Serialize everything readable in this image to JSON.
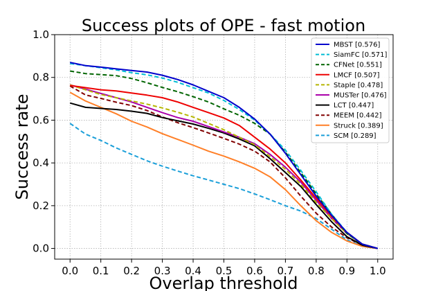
{
  "chart_data": {
    "type": "line",
    "title": "Success plots of OPE - fast motion",
    "xlabel": "Overlap threshold",
    "ylabel": "Success rate",
    "xlim": [
      -0.05,
      1.05
    ],
    "ylim": [
      -0.05,
      1.0
    ],
    "xticks": [
      0.0,
      0.1,
      0.2,
      0.3,
      0.4,
      0.5,
      0.6,
      0.7,
      0.8,
      0.9,
      1.0
    ],
    "yticks": [
      0.0,
      0.2,
      0.4,
      0.6,
      0.8,
      1.0
    ],
    "xtick_labels": [
      "0.0",
      "0.1",
      "0.2",
      "0.3",
      "0.4",
      "0.5",
      "0.6",
      "0.7",
      "0.8",
      "0.9",
      "1.0"
    ],
    "ytick_labels": [
      "0.0",
      "0.2",
      "0.4",
      "0.6",
      "0.8",
      "1.0"
    ],
    "grid": true,
    "legend_position": "top-right",
    "x": [
      0.0,
      0.05,
      0.1,
      0.15,
      0.2,
      0.25,
      0.3,
      0.35,
      0.4,
      0.45,
      0.5,
      0.55,
      0.6,
      0.65,
      0.7,
      0.75,
      0.8,
      0.85,
      0.9,
      0.95,
      1.0
    ],
    "series": [
      {
        "name": "MBST [0.576]",
        "color": "#0000cc",
        "dash": "solid",
        "values": [
          0.87,
          0.855,
          0.848,
          0.84,
          0.832,
          0.825,
          0.81,
          0.79,
          0.765,
          0.735,
          0.705,
          0.66,
          0.605,
          0.535,
          0.445,
          0.345,
          0.245,
          0.155,
          0.075,
          0.02,
          0.0
        ]
      },
      {
        "name": "SiamFC [0.571]",
        "color": "#00bcd4",
        "dash": "dash",
        "values": [
          0.865,
          0.855,
          0.845,
          0.835,
          0.822,
          0.812,
          0.797,
          0.777,
          0.752,
          0.727,
          0.692,
          0.65,
          0.6,
          0.535,
          0.46,
          0.365,
          0.265,
          0.16,
          0.075,
          0.02,
          0.0
        ]
      },
      {
        "name": "CFNet [0.551]",
        "color": "#006400",
        "dash": "dash",
        "values": [
          0.83,
          0.818,
          0.813,
          0.808,
          0.795,
          0.775,
          0.753,
          0.733,
          0.71,
          0.685,
          0.653,
          0.623,
          0.585,
          0.535,
          0.45,
          0.355,
          0.255,
          0.16,
          0.07,
          0.02,
          0.0
        ]
      },
      {
        "name": "LMCF [0.507]",
        "color": "#ee0000",
        "dash": "solid",
        "values": [
          0.762,
          0.752,
          0.742,
          0.737,
          0.727,
          0.717,
          0.705,
          0.685,
          0.66,
          0.635,
          0.61,
          0.575,
          0.52,
          0.465,
          0.4,
          0.32,
          0.235,
          0.15,
          0.075,
          0.02,
          0.0
        ]
      },
      {
        "name": "Staple [0.478]",
        "color": "#b5b500",
        "dash": "dash",
        "values": [
          0.765,
          0.742,
          0.72,
          0.705,
          0.69,
          0.675,
          0.657,
          0.637,
          0.615,
          0.585,
          0.555,
          0.52,
          0.485,
          0.43,
          0.37,
          0.3,
          0.215,
          0.14,
          0.07,
          0.02,
          0.0
        ]
      },
      {
        "name": "MUSTer [0.476]",
        "color": "#aa00aa",
        "dash": "solid",
        "values": [
          0.765,
          0.745,
          0.725,
          0.705,
          0.685,
          0.66,
          0.635,
          0.612,
          0.595,
          0.57,
          0.545,
          0.52,
          0.49,
          0.44,
          0.38,
          0.31,
          0.225,
          0.14,
          0.07,
          0.02,
          0.0
        ]
      },
      {
        "name": "LCT [0.447]",
        "color": "#000000",
        "dash": "solid",
        "values": [
          0.68,
          0.66,
          0.655,
          0.65,
          0.642,
          0.632,
          0.612,
          0.597,
          0.582,
          0.562,
          0.54,
          0.512,
          0.48,
          0.42,
          0.355,
          0.29,
          0.205,
          0.125,
          0.055,
          0.015,
          0.0
        ]
      },
      {
        "name": "MEEM [0.442]",
        "color": "#800000",
        "dash": "dash",
        "values": [
          0.76,
          0.718,
          0.702,
          0.684,
          0.668,
          0.645,
          0.615,
          0.588,
          0.565,
          0.54,
          0.515,
          0.488,
          0.455,
          0.405,
          0.33,
          0.245,
          0.165,
          0.1,
          0.05,
          0.015,
          0.0
        ]
      },
      {
        "name": "Struck [0.389]",
        "color": "#ff7f27",
        "dash": "solid",
        "values": [
          0.73,
          0.69,
          0.66,
          0.63,
          0.595,
          0.568,
          0.537,
          0.51,
          0.483,
          0.455,
          0.432,
          0.405,
          0.375,
          0.335,
          0.275,
          0.2,
          0.13,
          0.075,
          0.035,
          0.01,
          0.0
        ]
      },
      {
        "name": "SCM [0.289]",
        "color": "#1a9fd9",
        "dash": "dash",
        "values": [
          0.585,
          0.535,
          0.505,
          0.47,
          0.44,
          0.41,
          0.385,
          0.362,
          0.34,
          0.32,
          0.3,
          0.28,
          0.255,
          0.228,
          0.2,
          0.175,
          0.14,
          0.09,
          0.04,
          0.01,
          0.0
        ]
      }
    ]
  }
}
